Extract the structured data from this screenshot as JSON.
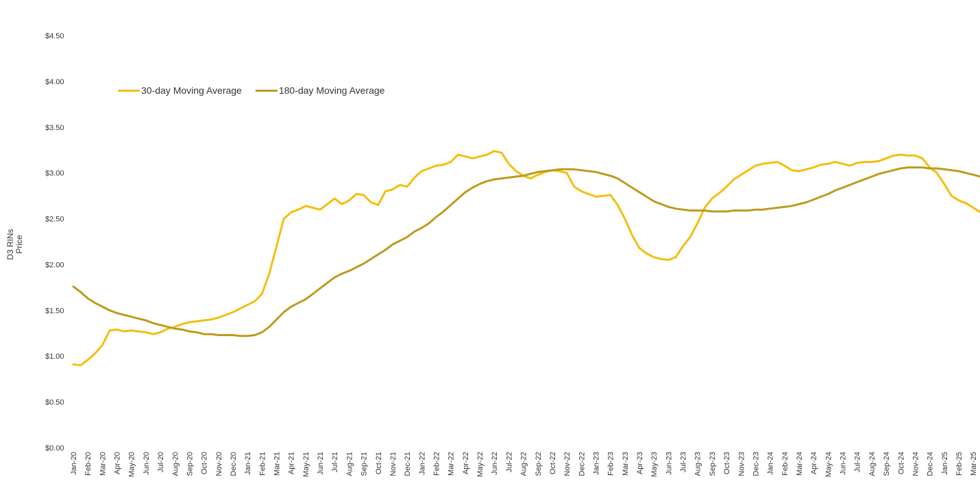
{
  "chart_data": {
    "type": "line",
    "ylabel": [
      "D3 RINs",
      "Price"
    ],
    "ylim": [
      0,
      4.5
    ],
    "yticks": [
      "$0.00",
      "$0.50",
      "$1.00",
      "$1.50",
      "$2.00",
      "$2.50",
      "$3.00",
      "$3.50",
      "$4.00",
      "$4.50"
    ],
    "x_labels": [
      "Jan-20",
      "Feb-20",
      "Mar-20",
      "Apr-20",
      "May-20",
      "Jun-20",
      "Jul-20",
      "Aug-20",
      "Sep-20",
      "Oct-20",
      "Nov-20",
      "Dec-20",
      "Jan-21",
      "Feb-21",
      "Mar-21",
      "Apr-21",
      "May-21",
      "Jun-21",
      "Jul-21",
      "Aug-21",
      "Sep-21",
      "Oct-21",
      "Nov-21",
      "Dec-21",
      "Jan-22",
      "Feb-22",
      "Mar-22",
      "Apr-22",
      "May-22",
      "Jun-22",
      "Jul-22",
      "Aug-22",
      "Sep-22",
      "Oct-22",
      "Nov-22",
      "Dec-22",
      "Jan-23",
      "Feb-23",
      "Mar-23",
      "Apr-23",
      "May-23",
      "Jun-23",
      "Jul-23",
      "Aug-23",
      "Sep-23",
      "Oct-23",
      "Nov-23",
      "Dec-23",
      "Jan-24",
      "Feb-24",
      "Mar-24",
      "Apr-24",
      "May-24",
      "Jun-24",
      "Jul-24",
      "Aug-24",
      "Sep-24",
      "Oct-24",
      "Nov-24",
      "Dec-24",
      "Jan-25",
      "Feb-25",
      "Mar-25"
    ],
    "grid": false,
    "legend_position": "top-left",
    "series": [
      {
        "name": "30-day Moving Average",
        "color": "#F5BE0B",
        "points": [
          [
            0,
            0.91
          ],
          [
            0.5,
            0.9
          ],
          [
            1,
            0.96
          ],
          [
            1.5,
            1.03
          ],
          [
            2,
            1.12
          ],
          [
            2.5,
            1.28
          ],
          [
            3,
            1.29
          ],
          [
            3.5,
            1.27
          ],
          [
            4,
            1.28
          ],
          [
            4.5,
            1.27
          ],
          [
            5,
            1.26
          ],
          [
            5.5,
            1.24
          ],
          [
            6,
            1.26
          ],
          [
            6.5,
            1.3
          ],
          [
            7,
            1.32
          ],
          [
            7.5,
            1.35
          ],
          [
            8,
            1.37
          ],
          [
            8.5,
            1.38
          ],
          [
            9,
            1.39
          ],
          [
            9.5,
            1.4
          ],
          [
            10,
            1.42
          ],
          [
            10.5,
            1.45
          ],
          [
            11,
            1.48
          ],
          [
            11.5,
            1.52
          ],
          [
            12,
            1.56
          ],
          [
            12.5,
            1.6
          ],
          [
            13,
            1.68
          ],
          [
            13.5,
            1.9
          ],
          [
            14,
            2.2
          ],
          [
            14.5,
            2.5
          ],
          [
            15,
            2.57
          ],
          [
            15.5,
            2.6
          ],
          [
            16,
            2.64
          ],
          [
            16.5,
            2.62
          ],
          [
            17,
            2.6
          ],
          [
            17.5,
            2.66
          ],
          [
            18,
            2.72
          ],
          [
            18.5,
            2.66
          ],
          [
            19,
            2.7
          ],
          [
            19.5,
            2.77
          ],
          [
            20,
            2.76
          ],
          [
            20.5,
            2.68
          ],
          [
            21,
            2.65
          ],
          [
            21.5,
            2.8
          ],
          [
            22,
            2.82
          ],
          [
            22.5,
            2.87
          ],
          [
            23,
            2.85
          ],
          [
            23.5,
            2.95
          ],
          [
            24,
            3.02
          ],
          [
            24.5,
            3.05
          ],
          [
            25,
            3.08
          ],
          [
            25.5,
            3.09
          ],
          [
            26,
            3.12
          ],
          [
            26.5,
            3.2
          ],
          [
            27,
            3.18
          ],
          [
            27.5,
            3.16
          ],
          [
            28,
            3.18
          ],
          [
            28.5,
            3.2
          ],
          [
            29,
            3.24
          ],
          [
            29.5,
            3.22
          ],
          [
            30,
            3.1
          ],
          [
            30.5,
            3.02
          ],
          [
            31,
            2.97
          ],
          [
            31.5,
            2.94
          ],
          [
            32,
            2.98
          ],
          [
            32.5,
            3.01
          ],
          [
            33,
            3.03
          ],
          [
            33.5,
            3.02
          ],
          [
            34,
            3.0
          ],
          [
            34.5,
            2.85
          ],
          [
            35,
            2.8
          ],
          [
            35.5,
            2.77
          ],
          [
            36,
            2.74
          ],
          [
            36.5,
            2.75
          ],
          [
            37,
            2.76
          ],
          [
            37.5,
            2.65
          ],
          [
            38,
            2.5
          ],
          [
            38.5,
            2.32
          ],
          [
            39,
            2.18
          ],
          [
            39.5,
            2.12
          ],
          [
            40,
            2.08
          ],
          [
            40.5,
            2.06
          ],
          [
            41,
            2.05
          ],
          [
            41.5,
            2.08
          ],
          [
            42,
            2.2
          ],
          [
            42.5,
            2.3
          ],
          [
            43,
            2.45
          ],
          [
            43.5,
            2.62
          ],
          [
            44,
            2.72
          ],
          [
            44.5,
            2.78
          ],
          [
            45,
            2.85
          ],
          [
            45.5,
            2.93
          ],
          [
            46,
            2.98
          ],
          [
            46.5,
            3.03
          ],
          [
            47,
            3.08
          ],
          [
            47.5,
            3.1
          ],
          [
            48,
            3.11
          ],
          [
            48.5,
            3.12
          ],
          [
            49,
            3.08
          ],
          [
            49.5,
            3.03
          ],
          [
            50,
            3.02
          ],
          [
            50.5,
            3.04
          ],
          [
            51,
            3.06
          ],
          [
            51.5,
            3.09
          ],
          [
            52,
            3.1
          ],
          [
            52.5,
            3.12
          ],
          [
            53,
            3.1
          ],
          [
            53.5,
            3.08
          ],
          [
            54,
            3.11
          ],
          [
            54.5,
            3.12
          ],
          [
            55,
            3.12
          ],
          [
            55.5,
            3.13
          ],
          [
            56,
            3.16
          ],
          [
            56.5,
            3.19
          ],
          [
            57,
            3.2
          ],
          [
            57.5,
            3.19
          ],
          [
            58,
            3.19
          ],
          [
            58.5,
            3.16
          ],
          [
            59,
            3.06
          ],
          [
            59.5,
            3.0
          ],
          [
            60,
            2.88
          ],
          [
            60.5,
            2.75
          ],
          [
            61,
            2.7
          ],
          [
            61.5,
            2.67
          ],
          [
            62,
            2.62
          ],
          [
            62.5,
            2.57
          ]
        ]
      },
      {
        "name": "180-day Moving Average",
        "color": "#BE9A1D",
        "points": [
          [
            0,
            1.76
          ],
          [
            0.5,
            1.7
          ],
          [
            1,
            1.63
          ],
          [
            1.5,
            1.58
          ],
          [
            2,
            1.54
          ],
          [
            2.5,
            1.5
          ],
          [
            3,
            1.47
          ],
          [
            3.5,
            1.45
          ],
          [
            4,
            1.43
          ],
          [
            4.5,
            1.41
          ],
          [
            5,
            1.39
          ],
          [
            5.5,
            1.36
          ],
          [
            6,
            1.34
          ],
          [
            6.5,
            1.32
          ],
          [
            7,
            1.3
          ],
          [
            7.5,
            1.29
          ],
          [
            8,
            1.27
          ],
          [
            8.5,
            1.26
          ],
          [
            9,
            1.24
          ],
          [
            9.5,
            1.24
          ],
          [
            10,
            1.23
          ],
          [
            10.5,
            1.23
          ],
          [
            11,
            1.23
          ],
          [
            11.5,
            1.22
          ],
          [
            12,
            1.22
          ],
          [
            12.5,
            1.23
          ],
          [
            13,
            1.26
          ],
          [
            13.5,
            1.32
          ],
          [
            14,
            1.4
          ],
          [
            14.5,
            1.48
          ],
          [
            15,
            1.54
          ],
          [
            15.5,
            1.58
          ],
          [
            16,
            1.62
          ],
          [
            16.5,
            1.68
          ],
          [
            17,
            1.74
          ],
          [
            17.5,
            1.8
          ],
          [
            18,
            1.86
          ],
          [
            18.5,
            1.9
          ],
          [
            19,
            1.93
          ],
          [
            19.5,
            1.97
          ],
          [
            20,
            2.01
          ],
          [
            20.5,
            2.06
          ],
          [
            21,
            2.11
          ],
          [
            21.5,
            2.16
          ],
          [
            22,
            2.22
          ],
          [
            22.5,
            2.26
          ],
          [
            23,
            2.3
          ],
          [
            23.5,
            2.36
          ],
          [
            24,
            2.4
          ],
          [
            24.5,
            2.45
          ],
          [
            25,
            2.52
          ],
          [
            25.5,
            2.58
          ],
          [
            26,
            2.65
          ],
          [
            26.5,
            2.72
          ],
          [
            27,
            2.79
          ],
          [
            27.5,
            2.84
          ],
          [
            28,
            2.88
          ],
          [
            28.5,
            2.91
          ],
          [
            29,
            2.93
          ],
          [
            29.5,
            2.94
          ],
          [
            30,
            2.95
          ],
          [
            30.5,
            2.96
          ],
          [
            31,
            2.97
          ],
          [
            31.5,
            2.99
          ],
          [
            32,
            3.01
          ],
          [
            32.5,
            3.02
          ],
          [
            33,
            3.03
          ],
          [
            33.5,
            3.04
          ],
          [
            34,
            3.04
          ],
          [
            34.5,
            3.04
          ],
          [
            35,
            3.03
          ],
          [
            35.5,
            3.02
          ],
          [
            36,
            3.01
          ],
          [
            36.5,
            2.99
          ],
          [
            37,
            2.97
          ],
          [
            37.5,
            2.94
          ],
          [
            38,
            2.89
          ],
          [
            38.5,
            2.84
          ],
          [
            39,
            2.79
          ],
          [
            39.5,
            2.74
          ],
          [
            40,
            2.69
          ],
          [
            40.5,
            2.66
          ],
          [
            41,
            2.63
          ],
          [
            41.5,
            2.61
          ],
          [
            42,
            2.6
          ],
          [
            42.5,
            2.59
          ],
          [
            43,
            2.59
          ],
          [
            43.5,
            2.59
          ],
          [
            44,
            2.58
          ],
          [
            44.5,
            2.58
          ],
          [
            45,
            2.58
          ],
          [
            45.5,
            2.59
          ],
          [
            46,
            2.59
          ],
          [
            46.5,
            2.59
          ],
          [
            47,
            2.6
          ],
          [
            47.5,
            2.6
          ],
          [
            48,
            2.61
          ],
          [
            48.5,
            2.62
          ],
          [
            49,
            2.63
          ],
          [
            49.5,
            2.64
          ],
          [
            50,
            2.66
          ],
          [
            50.5,
            2.68
          ],
          [
            51,
            2.71
          ],
          [
            51.5,
            2.74
          ],
          [
            52,
            2.77
          ],
          [
            52.5,
            2.81
          ],
          [
            53,
            2.84
          ],
          [
            53.5,
            2.87
          ],
          [
            54,
            2.9
          ],
          [
            54.5,
            2.93
          ],
          [
            55,
            2.96
          ],
          [
            55.5,
            2.99
          ],
          [
            56,
            3.01
          ],
          [
            56.5,
            3.03
          ],
          [
            57,
            3.05
          ],
          [
            57.5,
            3.06
          ],
          [
            58,
            3.06
          ],
          [
            58.5,
            3.06
          ],
          [
            59,
            3.05
          ],
          [
            59.5,
            3.05
          ],
          [
            60,
            3.04
          ],
          [
            60.5,
            3.03
          ],
          [
            61,
            3.02
          ],
          [
            61.5,
            3.0
          ],
          [
            62,
            2.98
          ],
          [
            62.5,
            2.96
          ]
        ]
      }
    ]
  }
}
